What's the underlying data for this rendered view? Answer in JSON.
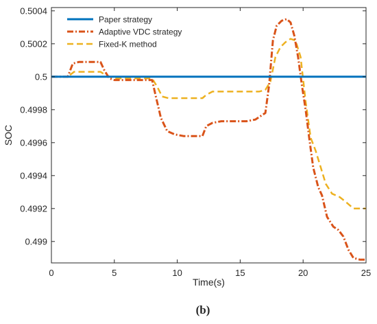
{
  "chart_data": {
    "type": "line",
    "title": "",
    "caption": "(b)",
    "xlabel": "Time(s)",
    "ylabel": "SOC",
    "xlim": [
      0,
      25
    ],
    "ylim": [
      0.49887,
      0.50042
    ],
    "xticks": [
      0,
      5,
      10,
      15,
      20,
      25
    ],
    "xtick_labels": [
      "0",
      "5",
      "10",
      "15",
      "20",
      "25"
    ],
    "yticks": [
      0.499,
      0.4992,
      0.4994,
      0.4996,
      0.4998,
      0.5,
      0.5002,
      0.5004
    ],
    "ytick_labels": [
      "0.499",
      "0.4992",
      "0.4994",
      "0.4996",
      "0.4998",
      "0.5",
      "0.5002",
      "0.5004"
    ],
    "grid": false,
    "legend_position": "top-left",
    "series": [
      {
        "name": "Paper strategy",
        "color": "#0072BD",
        "style": "solid",
        "x": [
          0,
          25
        ],
        "y": [
          0.5,
          0.5
        ]
      },
      {
        "name": "Adaptive VDC strategy",
        "color": "#D95319",
        "style": "dashdot",
        "x": [
          0,
          1.3,
          1.7,
          2.2,
          3,
          3.9,
          4.2,
          4.6,
          5,
          6,
          7,
          8,
          8.3,
          8.7,
          9.2,
          9.8,
          10.5,
          11.5,
          12,
          12.3,
          12.8,
          13.5,
          14.5,
          15.5,
          16.2,
          16.6,
          17,
          17.3,
          17.6,
          17.9,
          18.3,
          18.7,
          19,
          19.3,
          19.6,
          19.9,
          20.2,
          20.5,
          20.8,
          21.2,
          21.5,
          21.9,
          22.4,
          22.8,
          23.2,
          23.6,
          24,
          24.5,
          25
        ],
        "y": [
          0.5,
          0.5,
          0.50008,
          0.50009,
          0.50009,
          0.50009,
          0.50004,
          0.49999,
          0.49998,
          0.49998,
          0.49998,
          0.49998,
          0.49988,
          0.49975,
          0.49967,
          0.49965,
          0.49964,
          0.49964,
          0.49964,
          0.4997,
          0.49972,
          0.49973,
          0.49973,
          0.49973,
          0.49974,
          0.49976,
          0.49978,
          0.49995,
          0.50022,
          0.50031,
          0.50034,
          0.50035,
          0.50033,
          0.50025,
          0.50012,
          0.49995,
          0.4998,
          0.49962,
          0.49945,
          0.49933,
          0.49928,
          0.49915,
          0.49909,
          0.49907,
          0.49903,
          0.49895,
          0.4989,
          0.49889,
          0.49889
        ]
      },
      {
        "name": "Fixed-K method",
        "color": "#EDB120",
        "style": "dashed",
        "x": [
          0,
          1.3,
          1.8,
          3,
          3.9,
          4.3,
          5,
          6,
          7,
          8,
          8.4,
          8.8,
          9.3,
          10,
          11,
          12,
          12.3,
          12.8,
          13.5,
          14.5,
          15.5,
          16.5,
          17,
          17.4,
          17.8,
          18.2,
          18.6,
          19,
          19.4,
          19.8,
          20.2,
          20.6,
          21,
          21.4,
          21.8,
          22.3,
          22.9,
          23.4,
          24,
          25
        ],
        "y": [
          0.5,
          0.5,
          0.50003,
          0.50003,
          0.50003,
          0.50001,
          0.49999,
          0.49999,
          0.49999,
          0.49999,
          0.49994,
          0.49988,
          0.49987,
          0.49987,
          0.49987,
          0.49987,
          0.49989,
          0.49991,
          0.49991,
          0.49991,
          0.49991,
          0.49991,
          0.49992,
          0.49997,
          0.50012,
          0.50018,
          0.50021,
          0.50023,
          0.50022,
          0.50012,
          0.49985,
          0.49963,
          0.49955,
          0.49945,
          0.49935,
          0.49929,
          0.49927,
          0.49924,
          0.4992,
          0.4992
        ]
      }
    ]
  }
}
